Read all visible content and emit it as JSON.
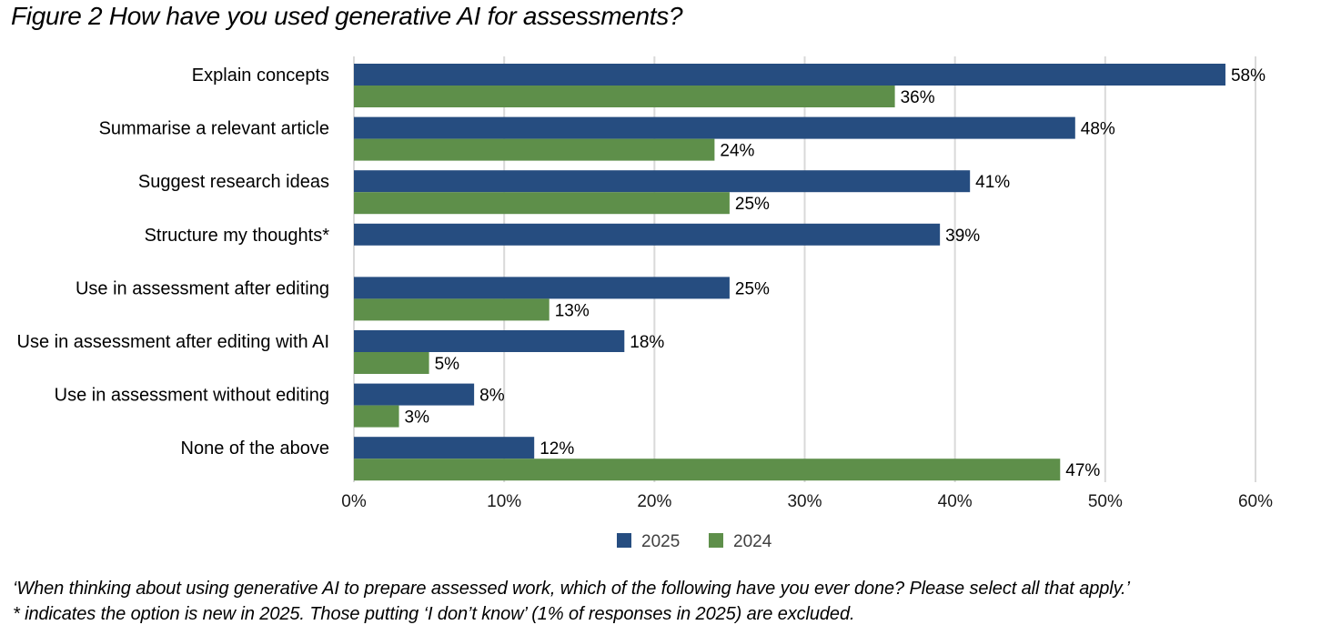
{
  "title": "Figure 2 How have you used generative AI for assessments?",
  "notes": [
    "‘When thinking about using generative AI to prepare assessed work, which of the following have you ever done? Please select all that apply.’",
    "* indicates the option is new in 2025. Those putting ‘I don’t know’ (1% of responses in 2025) are excluded."
  ],
  "colors": {
    "series_2025": "#264d80",
    "series_2024": "#5e8f4a",
    "grid": "#d9d9d9",
    "text": "#000000",
    "axis_text": "#1a1a1a",
    "legend_text": "#404040"
  },
  "chart_data": {
    "type": "bar",
    "orientation": "horizontal",
    "title": "Figure 2 How have you used generative AI for assessments?",
    "xlabel": "",
    "ylabel": "",
    "categories": [
      "Explain concepts",
      "Summarise a relevant article",
      "Suggest research ideas",
      "Structure my thoughts*",
      "Use in assessment after editing",
      "Use in assessment after editing with AI",
      "Use in assessment without editing",
      "None of the above"
    ],
    "series": [
      {
        "name": "2025",
        "values": [
          58,
          48,
          41,
          39,
          25,
          18,
          8,
          12
        ],
        "labels": [
          "58%",
          "48%",
          "41%",
          "39%",
          "25%",
          "18%",
          "8%",
          "12%"
        ]
      },
      {
        "name": "2024",
        "values": [
          36,
          24,
          25,
          null,
          13,
          5,
          3,
          47
        ],
        "labels": [
          "36%",
          "24%",
          "25%",
          "",
          "13%",
          "5%",
          "3%",
          "47%"
        ]
      }
    ],
    "xlim": [
      0,
      60
    ],
    "xticks": [
      0,
      10,
      20,
      30,
      40,
      50,
      60
    ],
    "xtick_labels": [
      "0%",
      "10%",
      "20%",
      "30%",
      "40%",
      "50%",
      "60%"
    ],
    "grid": true,
    "legend": "bottom-center"
  }
}
